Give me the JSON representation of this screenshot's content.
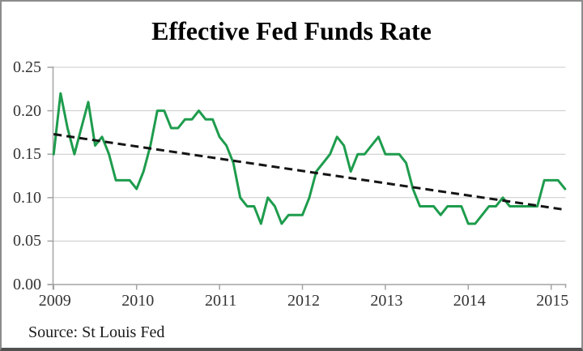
{
  "chart": {
    "title": "Effective Fed Funds Rate",
    "source_note": "Source: St Louis Fed"
  },
  "chart_data": {
    "type": "line",
    "title": "Effective Fed Funds Rate",
    "source": "Source: St Louis Fed",
    "x_unit": "month",
    "x_start": "2009-01",
    "x_end": "2015-03",
    "x_tick_labels": [
      "2009",
      "2010",
      "2011",
      "2012",
      "2013",
      "2014",
      "2015"
    ],
    "y_tick_labels": [
      "0.00",
      "0.05",
      "0.10",
      "0.15",
      "0.20",
      "0.25"
    ],
    "ylim": [
      0,
      0.25
    ],
    "grid": true,
    "legend": "none",
    "series": [
      {
        "name": "Effective Fed Funds Rate (monthly)",
        "style": "solid",
        "color": "#1E9C4D",
        "values": [
          0.15,
          0.22,
          0.18,
          0.15,
          0.18,
          0.21,
          0.16,
          0.17,
          0.15,
          0.12,
          0.12,
          0.12,
          0.11,
          0.13,
          0.16,
          0.2,
          0.2,
          0.18,
          0.18,
          0.19,
          0.19,
          0.2,
          0.19,
          0.19,
          0.17,
          0.16,
          0.14,
          0.1,
          0.09,
          0.09,
          0.07,
          0.1,
          0.09,
          0.07,
          0.08,
          0.08,
          0.08,
          0.1,
          0.13,
          0.14,
          0.15,
          0.17,
          0.16,
          0.13,
          0.15,
          0.15,
          0.16,
          0.17,
          0.15,
          0.15,
          0.15,
          0.14,
          0.11,
          0.09,
          0.09,
          0.09,
          0.08,
          0.09,
          0.09,
          0.09,
          0.07,
          0.07,
          0.08,
          0.09,
          0.09,
          0.1,
          0.09,
          0.09,
          0.09,
          0.09,
          0.09,
          0.12,
          0.12,
          0.12,
          0.11
        ]
      },
      {
        "name": "Linear trend",
        "style": "dashed",
        "color": "#151515",
        "trend_start": 0.173,
        "trend_end": 0.086
      }
    ]
  },
  "colors": {
    "background": "#ffffff",
    "gridline": "#c9c9c9",
    "axis": "#a3a3a3",
    "tick_text": "#333333",
    "title_text": "#000000",
    "line_green": "#1E9C4D",
    "trend_black": "#151515",
    "border": "#8c8c8c",
    "border_bottom": "#515151"
  }
}
